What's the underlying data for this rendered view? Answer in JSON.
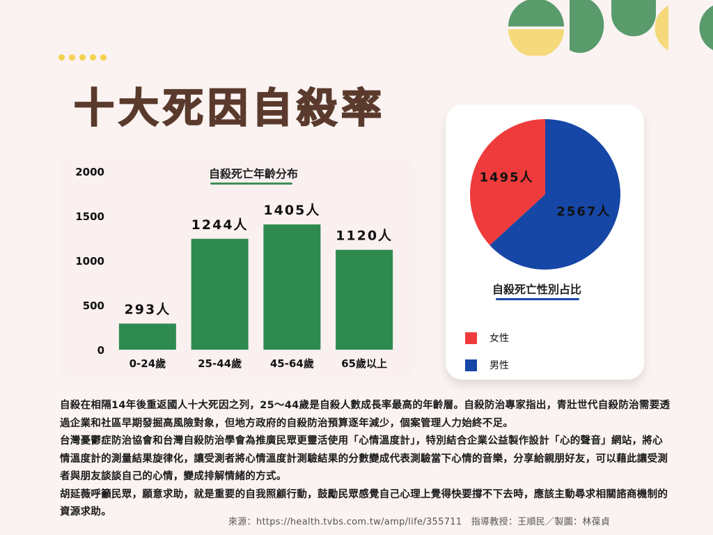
{
  "title": "十大死因自殺率",
  "colors": {
    "background": "#faf3f1",
    "title": "#5a3a2c",
    "bar": "#2f8a50",
    "female": "#ef3b3b",
    "male": "#1646a6",
    "green_accent": "#5a9b6c",
    "yellow_accent": "#f5d97a"
  },
  "chart_data": [
    {
      "type": "bar",
      "title": "自殺死亡年齡分布",
      "categories": [
        "0-24歲",
        "25-44歲",
        "45-64歲",
        "65歲以上"
      ],
      "values": [
        293,
        1244,
        1405,
        1120
      ],
      "data_labels": [
        "293人",
        "1244人",
        "1405人",
        "1120人"
      ],
      "yticks": [
        "0",
        "500",
        "1000",
        "1500",
        "2000"
      ],
      "ylim": [
        0,
        2000
      ],
      "grid": false
    },
    {
      "type": "pie",
      "title": "自殺死亡性別占比",
      "labels": [
        "女性",
        "男性"
      ],
      "values": [
        1495,
        2567
      ],
      "data_labels": [
        "1495人",
        "2567人"
      ],
      "colors": [
        "#ef3b3b",
        "#1646a6"
      ],
      "legend_position": "bottom-left"
    }
  ],
  "legend": [
    {
      "label": "女性",
      "color": "#ef3b3b"
    },
    {
      "label": "男性",
      "color": "#1646a6"
    }
  ],
  "paragraphs": [
    "自殺在相隔14年後重返國人十大死因之列，25～44歲是自殺人數成長率最高的年齡層。自殺防治專家指出，青壯世代自殺防治需要透過企業和社區早期發掘高風險對象，但地方政府的自殺防治預算逐年減少，個案管理人力始終不足。",
    "台灣憂鬱症防治協會和台灣自殺防治學會為推廣民眾更靈活使用「心情溫度計」，特別結合企業公益製作設計「心的聲音」網站，將心情溫度計的測量結果旋律化，讓受測者將心情溫度計測驗結果的分數變成代表測驗當下心情的音樂，分享給親朋好友，可以藉此讓受測者與朋友談談自己的心情，變成排解情緒的方式。",
    "胡延薇呼籲民眾，願意求助，就是重要的自我照顧行動，鼓勵民眾感覺自己心理上覺得快要撐不下去時，應該主動尋求相關諮商機制的資源求助。"
  ],
  "source": "來源：https://health.tvbs.com.tw/amp/life/355711　指導教授：王順民／製圖：林葆貞"
}
